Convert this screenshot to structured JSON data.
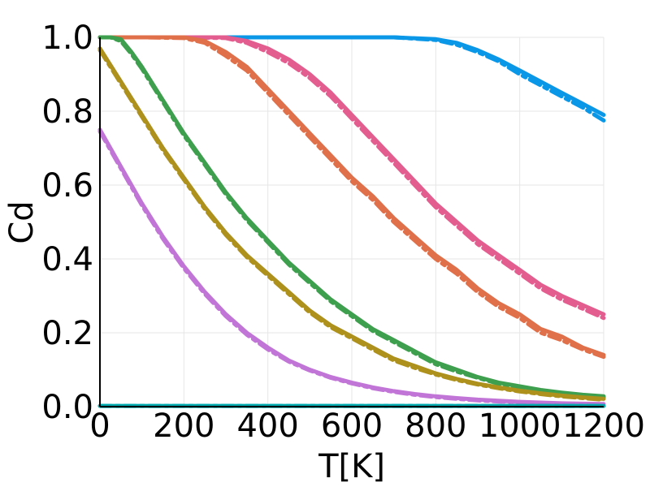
{
  "chart_data": {
    "type": "line",
    "title": "",
    "xlabel": "T[K]",
    "ylabel": "Cd",
    "xlim": [
      0,
      1200
    ],
    "ylim": [
      0,
      1.0
    ],
    "xticks": [
      0,
      200,
      400,
      600,
      800,
      1000,
      1200
    ],
    "yticks": [
      0.0,
      0.2,
      0.4,
      0.6,
      0.8,
      1.0
    ],
    "xtick_labels": [
      "0",
      "200",
      "400",
      "600",
      "800",
      "1000",
      "1200"
    ],
    "ytick_labels": [
      "0.0",
      "0.2",
      "0.4",
      "0.6",
      "0.8",
      "1.0"
    ],
    "grid": true,
    "legend": "none",
    "series": [
      {
        "color": "#0a97e8",
        "x": [
          0,
          100,
          200,
          300,
          400,
          500,
          600,
          700,
          800,
          850,
          900,
          950,
          1000,
          1050,
          1100,
          1150,
          1200
        ],
        "solid": [
          1.0,
          1.0,
          1.0,
          1.0,
          1.0,
          1.0,
          1.0,
          1.0,
          0.995,
          0.985,
          0.965,
          0.94,
          0.91,
          0.88,
          0.85,
          0.82,
          0.79
        ],
        "dashed": [
          1.0,
          1.0,
          1.0,
          1.0,
          1.0,
          1.0,
          1.0,
          1.0,
          0.993,
          0.98,
          0.96,
          0.935,
          0.9,
          0.87,
          0.84,
          0.81,
          0.775
        ]
      },
      {
        "color": "#e35d8f",
        "x": [
          0,
          100,
          200,
          300,
          350,
          400,
          450,
          500,
          550,
          600,
          650,
          700,
          750,
          800,
          850,
          900,
          950,
          1000,
          1050,
          1100,
          1150,
          1200
        ],
        "solid": [
          1.0,
          1.0,
          1.0,
          1.0,
          0.99,
          0.97,
          0.94,
          0.9,
          0.85,
          0.79,
          0.73,
          0.67,
          0.61,
          0.55,
          0.5,
          0.45,
          0.41,
          0.37,
          0.33,
          0.3,
          0.275,
          0.25
        ],
        "dashed": [
          1.0,
          1.0,
          1.0,
          0.998,
          0.985,
          0.96,
          0.93,
          0.89,
          0.84,
          0.78,
          0.72,
          0.66,
          0.6,
          0.54,
          0.49,
          0.44,
          0.4,
          0.36,
          0.32,
          0.29,
          0.265,
          0.24
        ]
      },
      {
        "color": "#e0704a",
        "x": [
          0,
          100,
          200,
          250,
          300,
          350,
          400,
          450,
          500,
          550,
          600,
          650,
          700,
          750,
          800,
          850,
          900,
          950,
          1000,
          1050,
          1100,
          1150,
          1200
        ],
        "solid": [
          1.0,
          1.0,
          1.0,
          0.99,
          0.96,
          0.92,
          0.86,
          0.8,
          0.74,
          0.68,
          0.62,
          0.57,
          0.51,
          0.46,
          0.41,
          0.37,
          0.32,
          0.28,
          0.25,
          0.21,
          0.19,
          0.16,
          0.14
        ],
        "dashed": [
          1.0,
          1.0,
          0.998,
          0.985,
          0.95,
          0.91,
          0.85,
          0.79,
          0.73,
          0.67,
          0.61,
          0.56,
          0.5,
          0.45,
          0.4,
          0.36,
          0.31,
          0.27,
          0.24,
          0.2,
          0.18,
          0.155,
          0.135
        ]
      },
      {
        "color": "#3ea04e",
        "x": [
          0,
          25,
          50,
          75,
          100,
          150,
          200,
          250,
          300,
          350,
          400,
          450,
          500,
          550,
          600,
          650,
          700,
          750,
          800,
          850,
          900,
          950,
          1000,
          1050,
          1100,
          1150,
          1200
        ],
        "solid": [
          1.0,
          1.0,
          0.995,
          0.96,
          0.92,
          0.83,
          0.74,
          0.66,
          0.58,
          0.51,
          0.45,
          0.39,
          0.34,
          0.29,
          0.25,
          0.21,
          0.18,
          0.15,
          0.12,
          0.1,
          0.08,
          0.065,
          0.055,
          0.045,
          0.038,
          0.032,
          0.028
        ],
        "dashed": [
          1.0,
          1.0,
          0.99,
          0.955,
          0.915,
          0.825,
          0.735,
          0.655,
          0.575,
          0.505,
          0.445,
          0.385,
          0.335,
          0.285,
          0.245,
          0.205,
          0.175,
          0.145,
          0.115,
          0.095,
          0.078,
          0.062,
          0.052,
          0.043,
          0.036,
          0.03,
          0.025
        ]
      },
      {
        "color": "#ad911c",
        "x": [
          0,
          50,
          100,
          150,
          200,
          250,
          300,
          350,
          400,
          450,
          500,
          550,
          600,
          650,
          700,
          750,
          800,
          850,
          900,
          950,
          1000,
          1050,
          1100,
          1150,
          1200
        ],
        "solid": [
          0.97,
          0.88,
          0.79,
          0.7,
          0.62,
          0.54,
          0.47,
          0.41,
          0.36,
          0.31,
          0.26,
          0.22,
          0.19,
          0.16,
          0.13,
          0.11,
          0.09,
          0.075,
          0.062,
          0.052,
          0.043,
          0.036,
          0.03,
          0.025,
          0.021
        ],
        "dashed": [
          0.965,
          0.875,
          0.785,
          0.695,
          0.615,
          0.535,
          0.465,
          0.405,
          0.355,
          0.305,
          0.255,
          0.215,
          0.185,
          0.155,
          0.125,
          0.105,
          0.087,
          0.072,
          0.06,
          0.05,
          0.041,
          0.034,
          0.028,
          0.023,
          0.019
        ]
      },
      {
        "color": "#c175d6",
        "x": [
          0,
          50,
          100,
          150,
          200,
          250,
          300,
          350,
          400,
          450,
          500,
          550,
          600,
          650,
          700,
          750,
          800,
          850,
          900,
          950,
          1000,
          1050,
          1100,
          1150,
          1200
        ],
        "solid": [
          0.75,
          0.65,
          0.55,
          0.46,
          0.38,
          0.31,
          0.25,
          0.2,
          0.16,
          0.125,
          0.1,
          0.08,
          0.065,
          0.052,
          0.042,
          0.034,
          0.028,
          0.023,
          0.019,
          0.016,
          0.013,
          0.011,
          0.009,
          0.008,
          0.007
        ],
        "dashed": [
          0.745,
          0.645,
          0.545,
          0.455,
          0.375,
          0.305,
          0.245,
          0.195,
          0.155,
          0.122,
          0.098,
          0.078,
          0.063,
          0.05,
          0.04,
          0.032,
          0.026,
          0.021,
          0.017,
          0.014,
          0.012,
          0.01,
          0.008,
          0.007,
          0.006
        ]
      },
      {
        "color": "#00a9ad",
        "x": [
          0,
          1200
        ],
        "solid": [
          0.002,
          0.002
        ],
        "dashed": [
          0.002,
          0.002
        ]
      }
    ]
  }
}
